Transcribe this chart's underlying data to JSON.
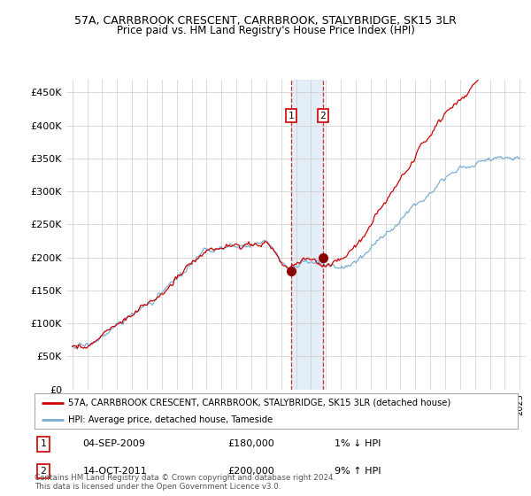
{
  "title_line1": "57A, CARRBROOK CRESCENT, CARRBROOK, STALYBRIDGE, SK15 3LR",
  "title_line2": "Price paid vs. HM Land Registry's House Price Index (HPI)",
  "ylabel_ticks": [
    "£0",
    "£50K",
    "£100K",
    "£150K",
    "£200K",
    "£250K",
    "£300K",
    "£350K",
    "£400K",
    "£450K"
  ],
  "ylabel_values": [
    0,
    50000,
    100000,
    150000,
    200000,
    250000,
    300000,
    350000,
    400000,
    450000
  ],
  "ylim": [
    0,
    470000
  ],
  "x_start_year": 1995,
  "x_end_year": 2025,
  "hpi_color": "#7aadd4",
  "price_color": "#cc0000",
  "transaction1_date": "04-SEP-2009",
  "transaction1_price": 180000,
  "transaction1_note": "1% ↓ HPI",
  "transaction1_year": 2009.67,
  "transaction1_label": "1",
  "transaction2_date": "14-OCT-2011",
  "transaction2_price": 200000,
  "transaction2_note": "9% ↑ HPI",
  "transaction2_year": 2011.79,
  "transaction2_label": "2",
  "legend_line1": "57A, CARRBROOK CRESCENT, CARRBROOK, STALYBRIDGE, SK15 3LR (detached house)",
  "legend_line2": "HPI: Average price, detached house, Tameside",
  "footer": "Contains HM Land Registry data © Crown copyright and database right 2024.\nThis data is licensed under the Open Government Licence v3.0.",
  "background_color": "#ffffff",
  "grid_color": "#cccccc"
}
